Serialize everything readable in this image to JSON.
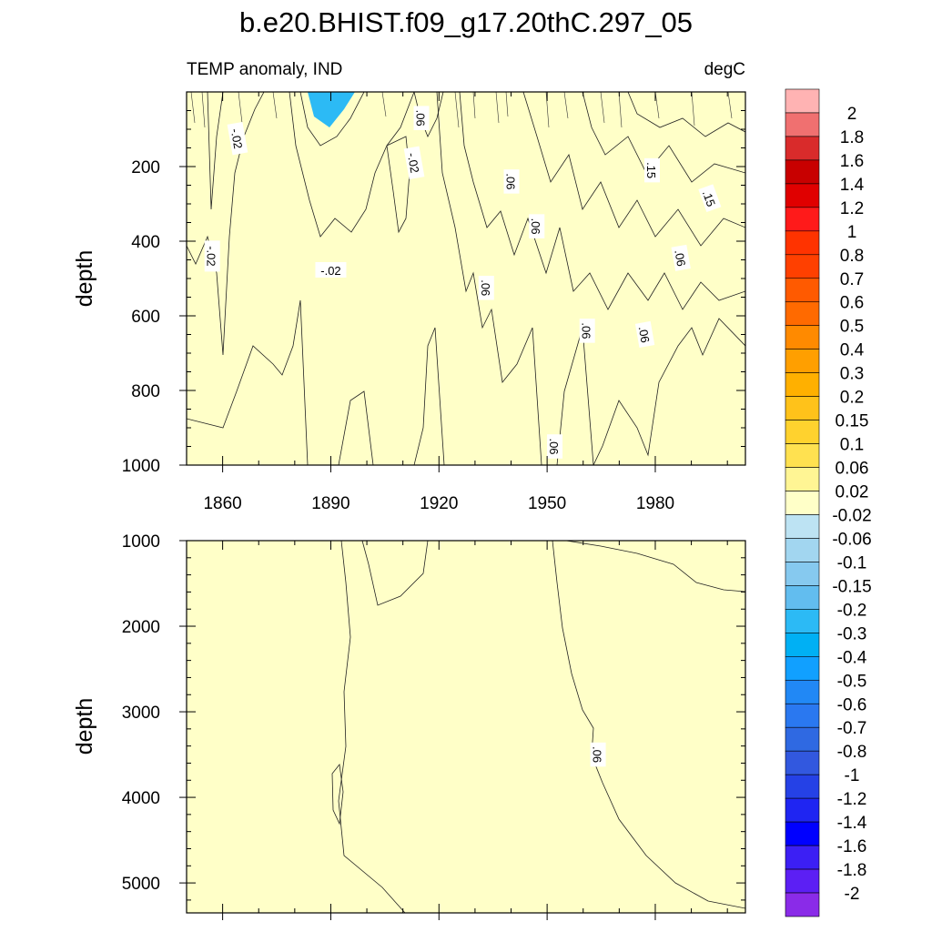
{
  "chart_data": {
    "type": "heatmap",
    "title": "b.e20.BHIST.f09_g17.20thC.297_05",
    "subtitle_left": "TEMP anomaly, IND",
    "subtitle_right": "degC",
    "x_range": [
      1850,
      2005
    ],
    "x_ticks": [
      "1860",
      "1890",
      "1920",
      "1950",
      "1980"
    ],
    "upper_panel": {
      "ylabel": "depth",
      "ylim": [
        0,
        1000
      ],
      "y_ticks": [
        "200",
        "400",
        "600",
        "800",
        "1000"
      ],
      "contour_labels": [
        {
          "text": "-.02",
          "year": 1864,
          "depth": 125,
          "angle": 80
        },
        {
          "text": ".06",
          "year": 1915,
          "depth": 70,
          "angle": 90
        },
        {
          "text": "-.02",
          "year": 1913,
          "depth": 190,
          "angle": 80
        },
        {
          "text": ".06",
          "year": 1940,
          "depth": 240,
          "angle": 90
        },
        {
          "text": ".15",
          "year": 1979,
          "depth": 210,
          "angle": 90
        },
        {
          "text": ".15",
          "year": 1995,
          "depth": 285,
          "angle": 70
        },
        {
          "text": ".06",
          "year": 1947,
          "depth": 360,
          "angle": 90
        },
        {
          "text": "-.02",
          "year": 1857,
          "depth": 440,
          "angle": 90
        },
        {
          "text": "-.02",
          "year": 1890,
          "depth": 478,
          "angle": 0
        },
        {
          "text": ".06",
          "year": 1933,
          "depth": 525,
          "angle": 90
        },
        {
          "text": ".06",
          "year": 1987,
          "depth": 445,
          "angle": 80
        },
        {
          "text": ".06",
          "year": 1961,
          "depth": 640,
          "angle": 90
        },
        {
          "text": ".06",
          "year": 1977,
          "depth": 650,
          "angle": 80
        },
        {
          "text": ".06",
          "year": 1952,
          "depth": 950,
          "angle": 90
        }
      ]
    },
    "lower_panel": {
      "ylabel": "depth",
      "ylim": [
        1000,
        5350
      ],
      "y_ticks": [
        "1000",
        "2000",
        "3000",
        "4000",
        "5000"
      ],
      "contour_labels": [
        {
          "text": ".06",
          "year": 1964,
          "depth": 3500,
          "angle": 90
        }
      ]
    },
    "colorbar": {
      "levels": [
        "2",
        "1.8",
        "1.6",
        "1.4",
        "1.2",
        "1",
        "0.8",
        "0.7",
        "0.6",
        "0.5",
        "0.4",
        "0.3",
        "0.2",
        "0.15",
        "0.1",
        "0.06",
        "0.02",
        "-0.02",
        "-0.06",
        "-0.1",
        "-0.15",
        "-0.2",
        "-0.3",
        "-0.4",
        "-0.5",
        "-0.6",
        "-0.7",
        "-0.8",
        "-1",
        "-1.2",
        "-1.4",
        "-1.6",
        "-1.8",
        "-2"
      ],
      "colors": [
        "#ffb3b3",
        "#f07070",
        "#d92b2b",
        "#c80000",
        "#e00000",
        "#ff1a1a",
        "#ff3300",
        "#ff4000",
        "#ff5a00",
        "#ff6a00",
        "#ff8a00",
        "#ff9f00",
        "#ffb000",
        "#ffc21a",
        "#ffd22e",
        "#ffe150",
        "#fff594",
        "#ffffc8",
        "#bde3f3",
        "#a2d6f0",
        "#86c9ef",
        "#62bdef",
        "#2cbaf5",
        "#00b0f4",
        "#11a0ff",
        "#2188f5",
        "#2a78f0",
        "#2f69e2",
        "#3258df",
        "#2541e6",
        "#1f25f2",
        "#0000ff",
        "#3c1ff4",
        "#5c1ff4",
        "#8a2be8"
      ]
    }
  }
}
